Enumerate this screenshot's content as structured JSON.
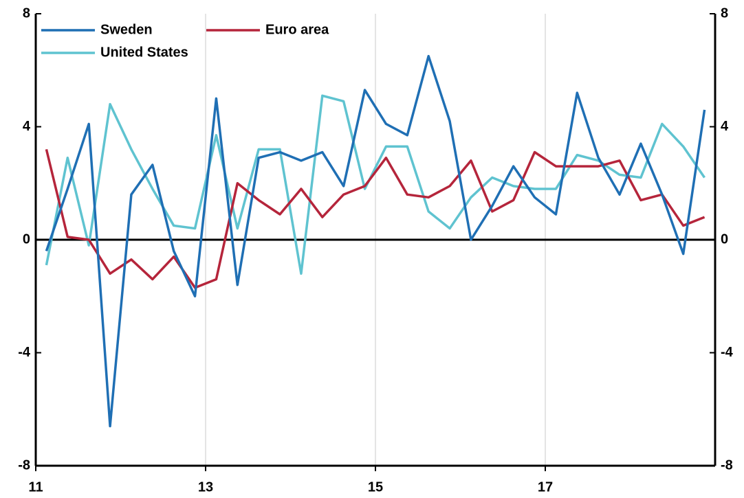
{
  "chart_data": {
    "type": "line",
    "x": [
      11.125,
      11.375,
      11.625,
      11.875,
      12.125,
      12.375,
      12.625,
      12.875,
      13.125,
      13.375,
      13.625,
      13.875,
      14.125,
      14.375,
      14.625,
      14.875,
      15.125,
      15.375,
      15.625,
      15.875,
      16.125,
      16.375,
      16.625,
      16.875,
      17.125,
      17.375,
      17.625,
      17.875,
      18.125,
      18.375,
      18.625,
      18.875
    ],
    "series": [
      {
        "name": "Sweden",
        "color": "#1f6fb4",
        "values": [
          -0.4,
          1.8,
          4.1,
          -6.6,
          1.6,
          2.65,
          -0.4,
          -2.0,
          5.0,
          -1.6,
          2.9,
          3.1,
          2.8,
          3.1,
          1.9,
          5.3,
          4.1,
          3.7,
          6.5,
          4.2,
          0,
          1.2,
          2.6,
          1.5,
          0.9,
          5.2,
          2.9,
          1.6,
          3.4,
          1.6,
          -0.5,
          4.6
        ]
      },
      {
        "name": "Euro area",
        "color": "#b5253b",
        "values": [
          3.2,
          0.1,
          0,
          -1.2,
          -0.7,
          -1.4,
          -0.6,
          -1.7,
          -1.4,
          2.0,
          1.4,
          0.9,
          1.8,
          0.8,
          1.6,
          1.9,
          2.9,
          1.6,
          1.5,
          1.9,
          2.8,
          1.0,
          1.4,
          3.1,
          2.6,
          2.6,
          2.6,
          2.8,
          1.4,
          1.6,
          0.5,
          0.8
        ]
      },
      {
        "name": "United States",
        "color": "#5fc3d0",
        "values": [
          -0.9,
          2.9,
          -0.2,
          4.8,
          3.2,
          1.8,
          0.5,
          0.4,
          3.7,
          0.4,
          3.2,
          3.2,
          -1.2,
          5.1,
          4.9,
          1.8,
          3.3,
          3.3,
          1.0,
          0.4,
          1.5,
          2.2,
          1.9,
          1.8,
          1.8,
          3.0,
          2.8,
          2.3,
          2.2,
          4.1,
          3.3,
          2.2
        ]
      }
    ],
    "xlim": [
      11,
      19
    ],
    "xticks": [
      11,
      13,
      15,
      17
    ],
    "ylim": [
      -8,
      8
    ],
    "yticks": [
      -8,
      -4,
      0,
      4,
      8
    ],
    "y2lim": [
      -8,
      8
    ],
    "y2ticks": [
      -8,
      -4,
      0,
      4,
      8
    ],
    "grid": true,
    "legend": "upper left"
  }
}
